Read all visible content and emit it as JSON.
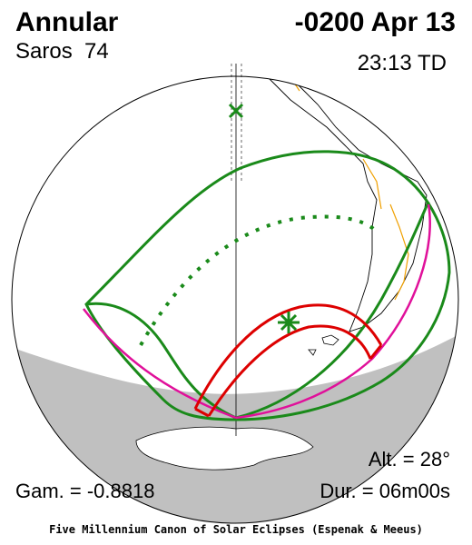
{
  "header": {
    "title": "Annular",
    "saros": "Saros  74",
    "date": "-0200 Apr 13",
    "time": "23:13 TD"
  },
  "footer": {
    "altitude": "Alt. = 28°",
    "gamma": "Gam. = -0.8818",
    "duration": "Dur. = 06m00s",
    "credit": "Five Millennium Canon of Solar Eclipses (Espenak & Meeus)"
  }
}
